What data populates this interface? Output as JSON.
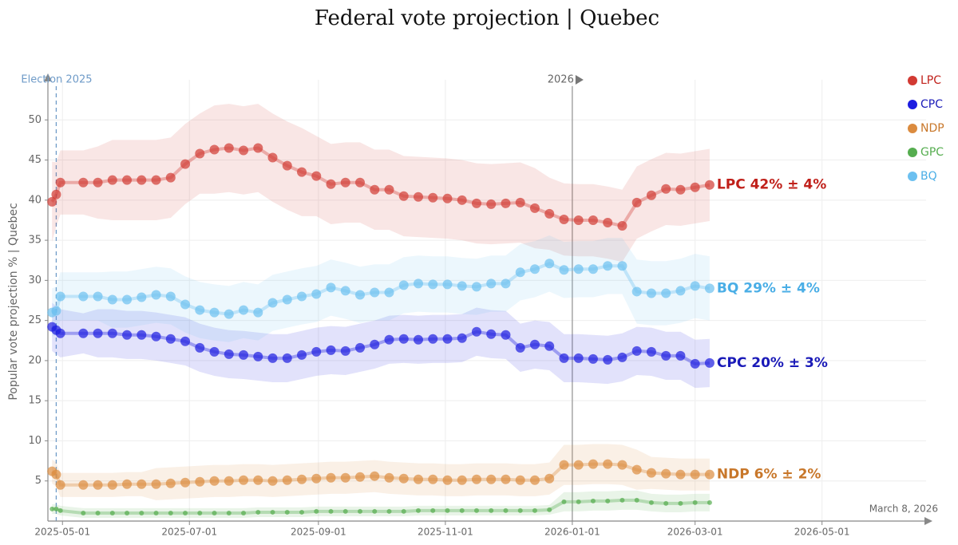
{
  "chart_data": {
    "type": "line",
    "title": "Federal vote projection | Quebec",
    "ylabel": "Popular vote projection % | Quebec",
    "date_note": "March 8, 2026",
    "x": [
      "2025-04-26",
      "2025-04-28",
      "2025-04-30",
      "2025-05-11",
      "2025-05-18",
      "2025-05-25",
      "2025-06-01",
      "2025-06-08",
      "2025-06-15",
      "2025-06-22",
      "2025-06-29",
      "2025-07-06",
      "2025-07-13",
      "2025-07-20",
      "2025-07-27",
      "2025-08-03",
      "2025-08-10",
      "2025-08-17",
      "2025-08-24",
      "2025-08-31",
      "2025-09-07",
      "2025-09-14",
      "2025-09-21",
      "2025-09-28",
      "2025-10-05",
      "2025-10-12",
      "2025-10-19",
      "2025-10-26",
      "2025-11-02",
      "2025-11-09",
      "2025-11-16",
      "2025-11-23",
      "2025-11-30",
      "2025-12-07",
      "2025-12-14",
      "2025-12-21",
      "2025-12-28",
      "2026-01-04",
      "2026-01-11",
      "2026-01-18",
      "2026-01-25",
      "2026-02-01",
      "2026-02-08",
      "2026-02-15",
      "2026-02-22",
      "2026-03-01",
      "2026-03-08"
    ],
    "xlim": [
      "2025-04-24",
      "2026-06-20"
    ],
    "xticks": [
      "2025-05-01",
      "2025-07-01",
      "2025-09-01",
      "2025-11-01",
      "2026-01-01",
      "2026-03-01",
      "2026-05-01"
    ],
    "ylim": [
      0,
      55
    ],
    "yticks": [
      5,
      10,
      15,
      20,
      25,
      30,
      35,
      40,
      45,
      50
    ],
    "grid": true,
    "legend": "top-right",
    "markers": [
      {
        "x": "2025-04-28",
        "label": "Election 2025",
        "color": "#6f9bc8",
        "dashed": true
      },
      {
        "x": "2026-01-01",
        "label": "2026",
        "color": "#999999",
        "dashed": false
      }
    ],
    "series": [
      {
        "name": "LPC",
        "color": "#d23a33",
        "label_color": "#c0201a",
        "marker_size": 6,
        "label": "LPC 42% ± 4%",
        "values": [
          39.8,
          40.7,
          42.2,
          42.2,
          42.2,
          42.5,
          42.5,
          42.5,
          42.5,
          42.8,
          44.5,
          45.8,
          46.3,
          46.5,
          46.2,
          46.5,
          45.3,
          44.3,
          43.5,
          43.0,
          42.0,
          42.2,
          42.2,
          41.3,
          41.3,
          40.5,
          40.4,
          40.3,
          40.2,
          40.0,
          39.6,
          39.5,
          39.6,
          39.7,
          39.0,
          38.3,
          37.6,
          37.5,
          37.5,
          37.2,
          36.8,
          39.7,
          40.6,
          41.4,
          41.3,
          41.6,
          41.9
        ],
        "error": [
          5,
          4,
          4,
          4,
          4.5,
          5,
          5,
          5,
          5,
          5,
          5,
          5,
          5.5,
          5.5,
          5.5,
          5.5,
          5.5,
          5.5,
          5.5,
          5,
          5,
          5,
          5,
          5,
          5,
          5,
          5,
          5,
          5,
          5,
          5,
          5,
          5,
          5,
          5,
          4.5,
          4.5,
          4.5,
          4.5,
          4.5,
          4.5,
          4.5,
          4.5,
          4.5,
          4.5,
          4.5,
          4.5
        ]
      },
      {
        "name": "CPC",
        "color": "#1c1ce0",
        "label_color": "#1a1ab8",
        "marker_size": 6,
        "label": "CPC 20% ± 3%",
        "values": [
          24.2,
          23.8,
          23.4,
          23.4,
          23.4,
          23.4,
          23.2,
          23.2,
          23.0,
          22.7,
          22.4,
          21.6,
          21.1,
          20.8,
          20.7,
          20.5,
          20.3,
          20.3,
          20.7,
          21.1,
          21.3,
          21.2,
          21.6,
          22.0,
          22.6,
          22.7,
          22.6,
          22.7,
          22.7,
          22.8,
          23.6,
          23.3,
          23.2,
          21.6,
          22.0,
          21.8,
          20.3,
          20.3,
          20.2,
          20.1,
          20.4,
          21.2,
          21.1,
          20.6,
          20.6,
          19.6,
          19.7
        ],
        "error": [
          3,
          3,
          3,
          2.5,
          3,
          3,
          3,
          3,
          3,
          3,
          3,
          3,
          3,
          3,
          3,
          3,
          3,
          3,
          3,
          3,
          3,
          3,
          3,
          3,
          3,
          3,
          3,
          3,
          3,
          3,
          3,
          3,
          3,
          3,
          3,
          3,
          3,
          3,
          3,
          3,
          3,
          3,
          3,
          3,
          3,
          3,
          3
        ]
      },
      {
        "name": "NDP",
        "color": "#db8b3f",
        "label_color": "#c8772a",
        "marker_size": 6,
        "label": "NDP 6% ± 2%",
        "values": [
          6.2,
          5.8,
          4.5,
          4.5,
          4.5,
          4.5,
          4.6,
          4.6,
          4.6,
          4.7,
          4.8,
          4.9,
          5.0,
          5.0,
          5.1,
          5.1,
          5.0,
          5.1,
          5.2,
          5.3,
          5.4,
          5.4,
          5.5,
          5.6,
          5.4,
          5.3,
          5.2,
          5.2,
          5.1,
          5.1,
          5.2,
          5.2,
          5.2,
          5.1,
          5.1,
          5.3,
          7.0,
          7.0,
          7.1,
          7.1,
          7.0,
          6.4,
          6.0,
          5.9,
          5.8,
          5.8,
          5.8
        ],
        "error": [
          1.5,
          1.5,
          1.5,
          1.5,
          1.5,
          1.5,
          1.5,
          1.5,
          2,
          2,
          2,
          2,
          2,
          2,
          2,
          2,
          2,
          2,
          2,
          2,
          2,
          2,
          2,
          2,
          2,
          2,
          2,
          2,
          2,
          2,
          2,
          2,
          2,
          2,
          2,
          2,
          2.5,
          2.5,
          2.5,
          2.5,
          2.5,
          2.5,
          2,
          2,
          2,
          2,
          2
        ]
      },
      {
        "name": "GPC",
        "color": "#55ad4f",
        "label_color": "#55ad4f",
        "marker_size": 3,
        "values": [
          1.5,
          1.5,
          1.3,
          1.0,
          1.0,
          1.0,
          1.0,
          1.0,
          1.0,
          1.0,
          1.0,
          1.0,
          1.0,
          1.0,
          1.0,
          1.1,
          1.1,
          1.1,
          1.1,
          1.2,
          1.2,
          1.2,
          1.2,
          1.2,
          1.2,
          1.2,
          1.3,
          1.3,
          1.3,
          1.3,
          1.3,
          1.3,
          1.3,
          1.3,
          1.3,
          1.4,
          2.4,
          2.4,
          2.5,
          2.5,
          2.6,
          2.6,
          2.3,
          2.2,
          2.2,
          2.3,
          2.3
        ],
        "error": [
          0.6,
          0.6,
          0.6,
          0.6,
          0.6,
          0.6,
          0.6,
          0.6,
          0.6,
          0.6,
          0.6,
          0.6,
          0.6,
          0.6,
          0.6,
          0.6,
          0.6,
          0.6,
          0.6,
          0.6,
          0.6,
          0.6,
          0.6,
          0.6,
          0.6,
          0.6,
          0.6,
          0.6,
          0.6,
          0.6,
          0.6,
          0.6,
          0.6,
          0.6,
          0.6,
          0.6,
          1.2,
          1.2,
          1.2,
          1.2,
          1.2,
          1.2,
          1.1,
          1.1,
          1.1,
          1.1,
          1.1
        ]
      },
      {
        "name": "BQ",
        "color": "#6cc0f0",
        "label_color": "#4aaee6",
        "marker_size": 6,
        "label": "BQ 29% ± 4%",
        "values": [
          26.0,
          26.2,
          28.0,
          28.0,
          28.0,
          27.6,
          27.6,
          27.9,
          28.2,
          28.0,
          27.0,
          26.3,
          26.0,
          25.8,
          26.3,
          26.0,
          27.2,
          27.6,
          28.0,
          28.3,
          29.1,
          28.7,
          28.2,
          28.5,
          28.5,
          29.4,
          29.6,
          29.5,
          29.5,
          29.3,
          29.2,
          29.6,
          29.6,
          31.0,
          31.4,
          32.1,
          31.3,
          31.4,
          31.4,
          31.8,
          31.8,
          28.6,
          28.4,
          28.4,
          28.7,
          29.3,
          29.0
        ],
        "error": [
          3,
          3,
          3,
          3,
          3,
          3.5,
          3.5,
          3.5,
          3.5,
          3.5,
          3.5,
          3.5,
          3.5,
          3.5,
          3.5,
          3.5,
          3.5,
          3.5,
          3.5,
          3.5,
          3.5,
          3.5,
          3.5,
          3.5,
          3.5,
          3.5,
          3.5,
          3.5,
          3.5,
          3.5,
          3.5,
          3.5,
          3.5,
          3.5,
          3.5,
          3.5,
          3.5,
          3.5,
          3.5,
          3.5,
          3.5,
          4,
          4,
          4,
          4,
          4,
          4
        ]
      }
    ]
  }
}
